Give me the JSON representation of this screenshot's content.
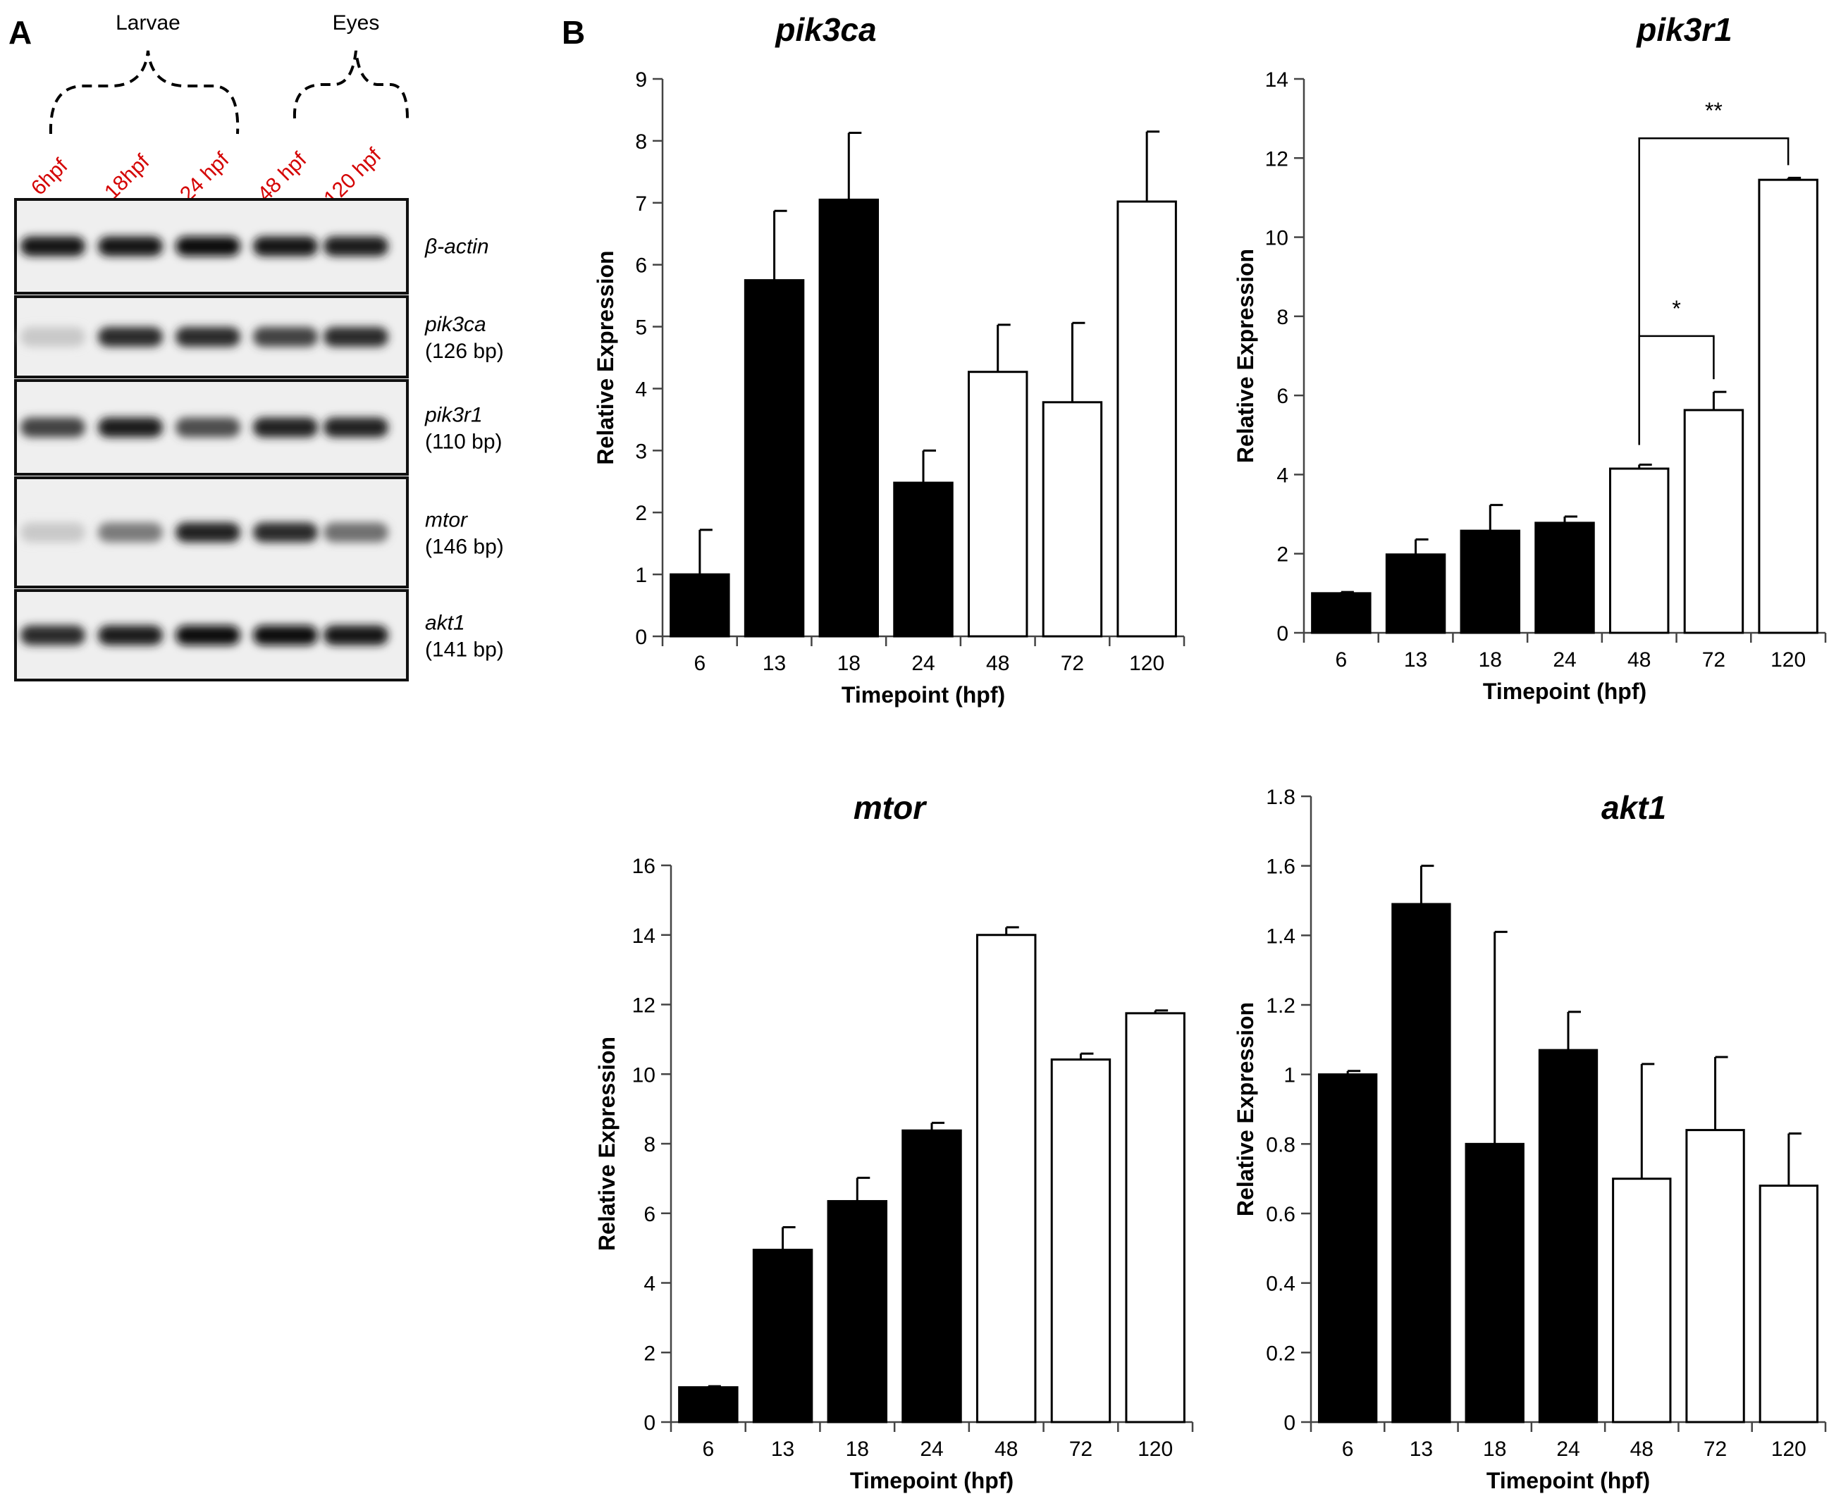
{
  "panel_a": {
    "label": "A",
    "groups": [
      {
        "label": "Larvae"
      },
      {
        "label": "Eyes"
      }
    ],
    "lanes": [
      "6hpf",
      "18hpf",
      "24 hpf",
      "48 hpf",
      "120 hpf"
    ],
    "lane_color": "#d40000",
    "gels": [
      {
        "name": "β-actin",
        "size": "",
        "intensities": [
          0.95,
          0.95,
          0.97,
          0.95,
          0.93
        ]
      },
      {
        "name": "pik3ca",
        "size": "(126 bp)",
        "intensities": [
          0.15,
          0.85,
          0.85,
          0.75,
          0.85
        ]
      },
      {
        "name": "pik3r1",
        "size": "(110 bp)",
        "intensities": [
          0.75,
          0.92,
          0.7,
          0.9,
          0.9
        ]
      },
      {
        "name": "mtor",
        "size": "(146 bp)",
        "intensities": [
          0.15,
          0.5,
          0.9,
          0.85,
          0.55
        ]
      },
      {
        "name": "akt1",
        "size": "(141 bp)",
        "intensities": [
          0.85,
          0.92,
          0.97,
          0.97,
          0.95
        ]
      }
    ]
  },
  "panel_b": {
    "label": "B"
  },
  "chart_data": [
    {
      "type": "bar",
      "title": "pik3ca",
      "xlabel": "Timepoint (hpf)",
      "ylabel": "Relative Expression",
      "categories": [
        "6",
        "13",
        "18",
        "24",
        "48",
        "72",
        "120"
      ],
      "values": [
        1.0,
        5.75,
        7.05,
        2.48,
        4.27,
        3.78,
        7.02
      ],
      "errors": [
        0.72,
        1.12,
        1.08,
        0.52,
        0.76,
        1.28,
        1.13
      ],
      "fills": [
        "#000000",
        "#000000",
        "#000000",
        "#000000",
        "#ffffff",
        "#ffffff",
        "#ffffff"
      ],
      "ylim": [
        0,
        9
      ],
      "yticks": [
        "0",
        "1",
        "2",
        "3",
        "4",
        "5",
        "6",
        "7",
        "8",
        "9"
      ],
      "brackets": []
    },
    {
      "type": "bar",
      "title": "pik3r1",
      "xlabel": "Timepoint (hpf)",
      "ylabel": "Relative Expression",
      "categories": [
        "6",
        "13",
        "18",
        "24",
        "48",
        "72",
        "120"
      ],
      "values": [
        1.0,
        1.98,
        2.58,
        2.78,
        4.15,
        5.63,
        11.45
      ],
      "errors": [
        0.03,
        0.38,
        0.65,
        0.16,
        0.1,
        0.46,
        0.05
      ],
      "fills": [
        "#000000",
        "#000000",
        "#000000",
        "#000000",
        "#ffffff",
        "#ffffff",
        "#ffffff"
      ],
      "ylim": [
        0,
        14
      ],
      "yticks": [
        "0",
        "2",
        "4",
        "6",
        "8",
        "10",
        "12",
        "14"
      ],
      "brackets": [
        {
          "from": 4,
          "to": 5,
          "label": "*",
          "y": 7.5
        },
        {
          "from": 4,
          "to": 6,
          "label": "**",
          "y": 12.5
        }
      ]
    },
    {
      "type": "bar",
      "title": "mtor",
      "xlabel": "Timepoint (hpf)",
      "ylabel": "Relative Expression",
      "categories": [
        "6",
        "13",
        "18",
        "24",
        "48",
        "72",
        "120"
      ],
      "values": [
        1.0,
        4.95,
        6.35,
        8.38,
        14.0,
        10.42,
        11.75
      ],
      "errors": [
        0.03,
        0.65,
        0.67,
        0.22,
        0.22,
        0.17,
        0.08
      ],
      "fills": [
        "#000000",
        "#000000",
        "#000000",
        "#000000",
        "#ffffff",
        "#ffffff",
        "#ffffff"
      ],
      "ylim": [
        0,
        16
      ],
      "yticks": [
        "0",
        "2",
        "4",
        "6",
        "8",
        "10",
        "12",
        "14",
        "16"
      ],
      "brackets": []
    },
    {
      "type": "bar",
      "title": "akt1",
      "xlabel": "Timepoint (hpf)",
      "ylabel": "Relative Expression",
      "categories": [
        "6",
        "13",
        "18",
        "24",
        "48",
        "72",
        "120"
      ],
      "values": [
        1.0,
        1.49,
        0.8,
        1.07,
        0.7,
        0.84,
        0.68
      ],
      "errors": [
        0.01,
        0.11,
        0.61,
        0.11,
        0.33,
        0.21,
        0.15
      ],
      "fills": [
        "#000000",
        "#000000",
        "#000000",
        "#000000",
        "#ffffff",
        "#ffffff",
        "#ffffff"
      ],
      "ylim": [
        0,
        1.8
      ],
      "yticks": [
        "0",
        "0.2",
        "0.4",
        "0.6",
        "0.8",
        "1",
        "1.2",
        "1.4",
        "1.6",
        "1.8"
      ],
      "brackets": []
    }
  ]
}
